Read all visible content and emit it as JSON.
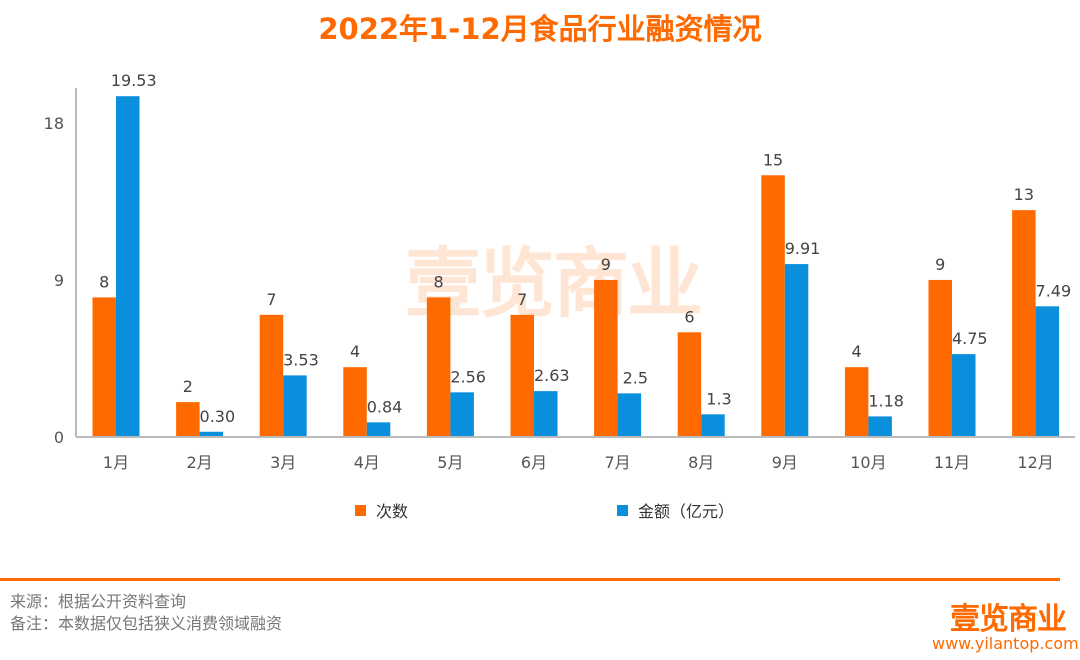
{
  "chart_data": {
    "type": "bar",
    "title": "2022年1-12月食品行业融资情况",
    "categories": [
      "1月",
      "2月",
      "3月",
      "4月",
      "5月",
      "6月",
      "7月",
      "8月",
      "9月",
      "10月",
      "11月",
      "12月"
    ],
    "series": [
      {
        "name": "次数",
        "color": "#FF6A00",
        "values": [
          8,
          2,
          7,
          4,
          8,
          7,
          9,
          6,
          15,
          4,
          9,
          13
        ],
        "labels": [
          "8",
          "2",
          "7",
          "4",
          "8",
          "7",
          "9",
          "6",
          "15",
          "4",
          "9",
          "13"
        ]
      },
      {
        "name": "金额（亿元）",
        "color": "#0A8FDC",
        "values": [
          19.53,
          0.3,
          3.53,
          0.84,
          2.56,
          2.63,
          2.5,
          1.3,
          9.91,
          1.18,
          4.75,
          7.49
        ],
        "labels": [
          "19.53",
          "0.30",
          "3.53",
          "0.84",
          "2.56",
          "2.63",
          "2.5",
          "1.3",
          "9.91",
          "1.18",
          "4.75",
          "7.49"
        ]
      }
    ],
    "yticks": [
      "0",
      "9",
      "18"
    ],
    "ylim": [
      0,
      19.5
    ],
    "grid": false,
    "legend": "bottom"
  },
  "watermark": "壹览商业",
  "footer": {
    "source": "来源：根据公开资料查询",
    "note": "备注：本数据仅包括狭义消费领域融资",
    "logo": "壹览商业",
    "url": "www.yilantop.com"
  }
}
